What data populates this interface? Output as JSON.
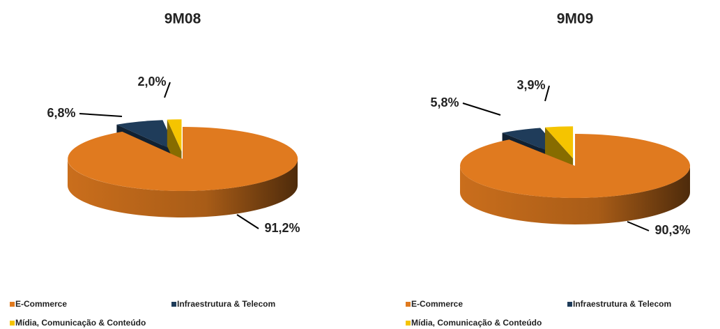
{
  "chart_data": [
    {
      "type": "pie",
      "title": "9M08",
      "categories": [
        "E-Commerce",
        "Infraestrutura & Telecom",
        "Mídia, Comunicação & Conteúdo"
      ],
      "values": [
        91.2,
        6.8,
        2.0
      ],
      "value_labels": [
        "91,2%",
        "6,8%",
        "2,0%"
      ],
      "colors": [
        "#e07a1f",
        "#1f3c5a",
        "#f5c400"
      ]
    },
    {
      "type": "pie",
      "title": "9M09",
      "categories": [
        "E-Commerce",
        "Infraestrutura & Telecom",
        "Mídia, Comunicação & Conteúdo"
      ],
      "values": [
        90.3,
        5.8,
        3.9
      ],
      "value_labels": [
        "90,3%",
        "5,8%",
        "3,9%"
      ],
      "colors": [
        "#e07a1f",
        "#1f3c5a",
        "#f5c400"
      ]
    }
  ]
}
